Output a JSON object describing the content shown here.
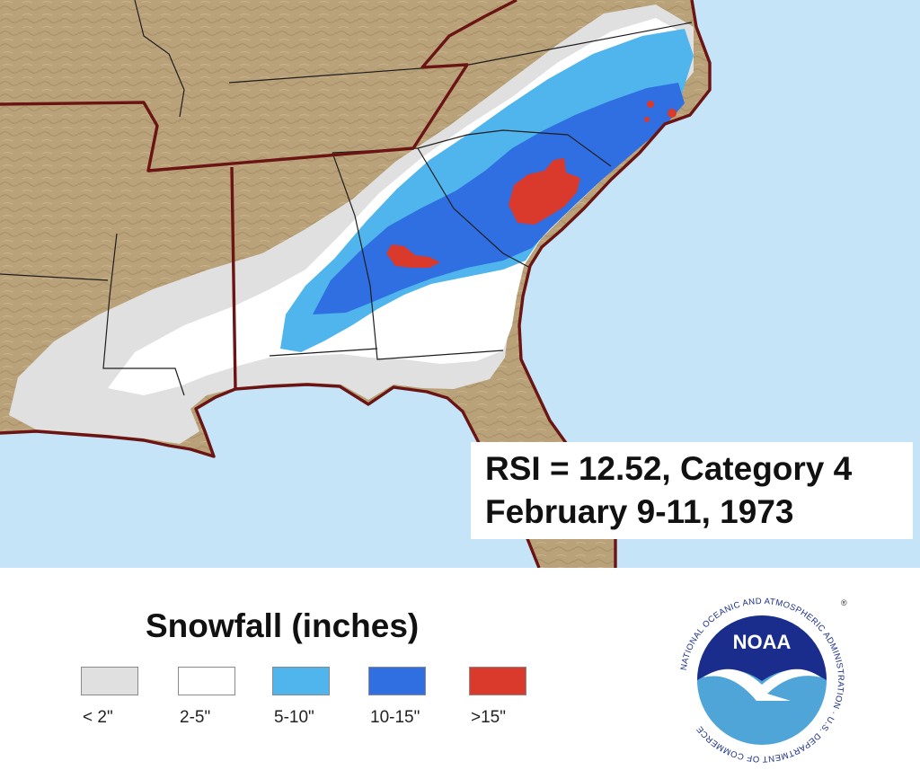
{
  "info": {
    "rsi_line": "RSI = 12.52, Category 4",
    "date_line": "February 9-11, 1973"
  },
  "legend": {
    "title": "Snowfall (inches)",
    "categories": [
      {
        "label": "< 2\"",
        "color": "#e0e0e0"
      },
      {
        "label": "2-5\"",
        "color": "#ffffff"
      },
      {
        "label": "5-10\"",
        "color": "#4fb5ec"
      },
      {
        "label": "10-15\"",
        "color": "#2f6fe2"
      },
      {
        "label": ">15\"",
        "color": "#d93a2b"
      }
    ]
  },
  "map_colors": {
    "ocean": "#c5e4f8",
    "land": "#b9a27a",
    "boundary": "#6b1414"
  },
  "logo": {
    "wordmark": "NOAA",
    "ring_text": "NATIONAL OCEANIC AND ATMOSPHERIC ADMINISTRATION · U.S. DEPARTMENT OF COMMERCE"
  }
}
